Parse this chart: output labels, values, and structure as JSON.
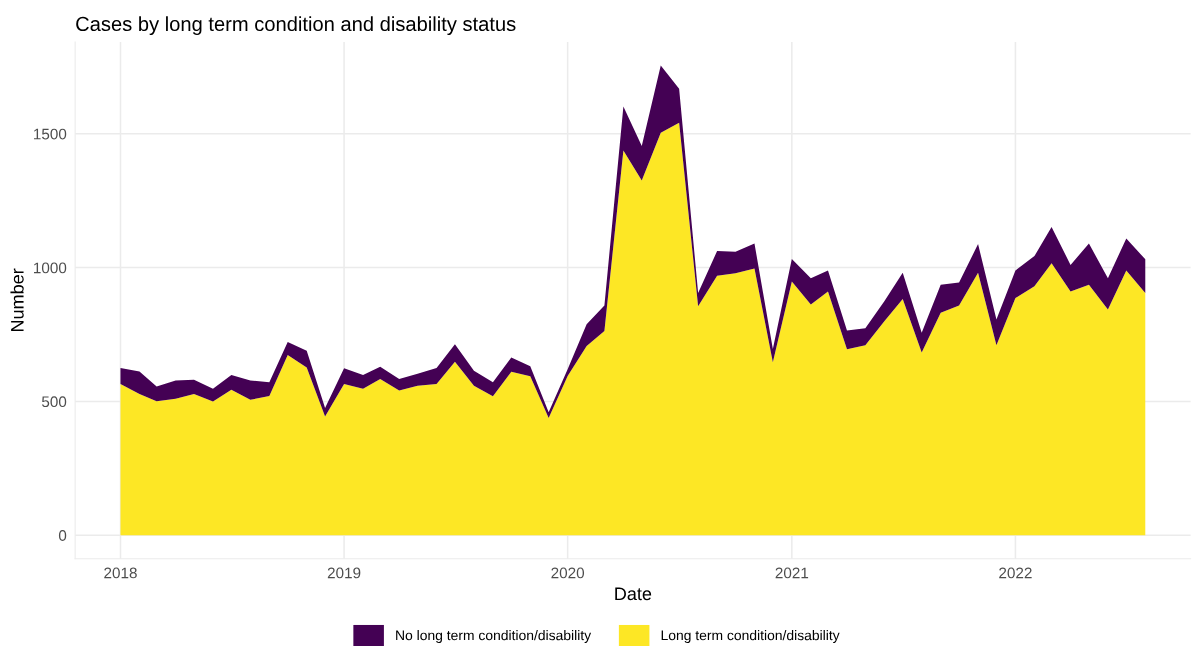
{
  "chart_data": {
    "type": "area",
    "stacked": true,
    "title": "Cases by long term condition and disability status",
    "xlabel": "Date",
    "ylabel": "Number",
    "x": [
      "2018-01",
      "2018-02",
      "2018-03",
      "2018-04",
      "2018-05",
      "2018-06",
      "2018-07",
      "2018-08",
      "2018-09",
      "2018-10",
      "2018-11",
      "2018-12",
      "2019-01",
      "2019-02",
      "2019-03",
      "2019-04",
      "2019-05",
      "2019-06",
      "2019-07",
      "2019-08",
      "2019-09",
      "2019-10",
      "2019-11",
      "2019-12",
      "2020-01",
      "2020-02",
      "2020-03",
      "2020-04",
      "2020-05",
      "2020-06",
      "2020-07",
      "2020-08",
      "2020-09",
      "2020-10",
      "2020-11",
      "2020-12",
      "2021-01",
      "2021-02",
      "2021-03",
      "2021-04",
      "2021-05",
      "2021-06",
      "2021-07",
      "2021-08",
      "2021-09",
      "2021-10",
      "2021-11",
      "2021-12",
      "2022-01",
      "2022-02",
      "2022-03",
      "2022-04",
      "2022-05",
      "2022-06",
      "2022-07",
      "2022-08"
    ],
    "series": [
      {
        "name": "Long term condition/disability",
        "color": "#fde725",
        "values": [
          565,
          528,
          501,
          510,
          528,
          500,
          544,
          506,
          520,
          673,
          627,
          444,
          565,
          547,
          584,
          541,
          559,
          565,
          648,
          559,
          519,
          611,
          594,
          438,
          595,
          707,
          763,
          1438,
          1325,
          1504,
          1541,
          856,
          970,
          979,
          997,
          646,
          948,
          862,
          911,
          695,
          710,
          800,
          883,
          683,
          831,
          858,
          981,
          710,
          886,
          930,
          1016,
          911,
          936,
          843,
          989,
          905
        ]
      },
      {
        "name": "No long term condition/disability",
        "color": "#440154",
        "values": [
          60,
          84,
          55,
          68,
          53,
          47,
          55,
          72,
          52,
          49,
          62,
          31,
          59,
          52,
          46,
          43,
          44,
          60,
          66,
          56,
          53,
          53,
          37,
          22,
          25,
          81,
          95,
          164,
          129,
          251,
          127,
          49,
          92,
          80,
          93,
          50,
          84,
          98,
          78,
          70,
          63,
          74,
          98,
          74,
          105,
          86,
          107,
          96,
          103,
          113,
          136,
          99,
          154,
          117,
          120,
          126
        ]
      }
    ],
    "xlim": [
      "2017-10-19",
      "2022-10-14"
    ],
    "xticks": [
      {
        "value": "2018-01-01",
        "label": "2018"
      },
      {
        "value": "2019-01-01",
        "label": "2019"
      },
      {
        "value": "2020-01-01",
        "label": "2020"
      },
      {
        "value": "2021-01-01",
        "label": "2021"
      },
      {
        "value": "2022-01-01",
        "label": "2022"
      }
    ],
    "ylim": [
      -88,
      1843
    ],
    "yticks": [
      0,
      500,
      1000,
      1500
    ],
    "grid": true,
    "legend": "bottom"
  }
}
